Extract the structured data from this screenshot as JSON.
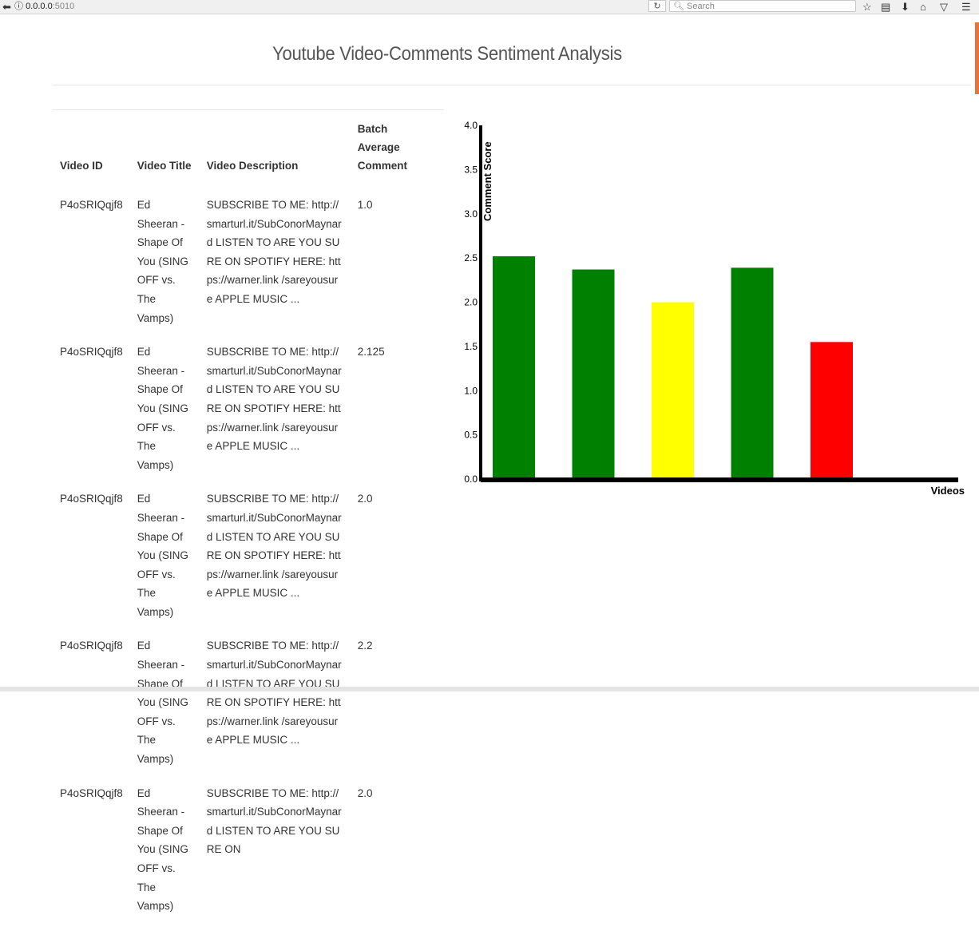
{
  "browser": {
    "url_host": "0.0.0.0",
    "url_port": ":5010",
    "search_placeholder": "Search"
  },
  "page": {
    "title": "Youtube Video-Comments Sentiment Analysis"
  },
  "table": {
    "headers": [
      "Video ID",
      "Video Title",
      "Video Description",
      "Batch Average Comment"
    ],
    "rows": [
      {
        "id": "P4oSRIQqjf8",
        "title": "Ed Sheeran - Shape Of You (SING OFF vs. The Vamps)",
        "description": "SUBSCRIBE TO ME: http://smarturl.it/SubConorMaynard LISTEN TO ARE YOU SURE ON SPOTIFY HERE: https://warner.link /sareyousure APPLE MUSIC ...",
        "score": "1.0"
      },
      {
        "id": "P4oSRIQqjf8",
        "title": "Ed Sheeran - Shape Of You (SING OFF vs. The Vamps)",
        "description": "SUBSCRIBE TO ME: http://smarturl.it/SubConorMaynard LISTEN TO ARE YOU SURE ON SPOTIFY HERE: https://warner.link /sareyousure APPLE MUSIC ...",
        "score": "2.125"
      },
      {
        "id": "P4oSRIQqjf8",
        "title": "Ed Sheeran - Shape Of You (SING OFF vs. The Vamps)",
        "description": "SUBSCRIBE TO ME: http://smarturl.it/SubConorMaynard LISTEN TO ARE YOU SURE ON SPOTIFY HERE: https://warner.link /sareyousure APPLE MUSIC ...",
        "score": "2.0"
      },
      {
        "id": "P4oSRIQqjf8",
        "title": "Ed Sheeran - Shape Of You (SING OFF vs. The Vamps)",
        "description": "SUBSCRIBE TO ME: http://smarturl.it/SubConorMaynard LISTEN TO ARE YOU SURE ON SPOTIFY HERE: https://warner.link /sareyousure APPLE MUSIC ...",
        "score": "2.2"
      },
      {
        "id": "P4oSRIQqjf8",
        "title": "Ed Sheeran - Shape Of You (SING OFF vs. The Vamps)",
        "description": "SUBSCRIBE TO ME: http://smarturl.it/SubConorMaynard LISTEN TO ARE YOU SURE ON",
        "score": "2.0"
      }
    ]
  },
  "chart_data": {
    "type": "bar",
    "categories": [
      "",
      "",
      "",
      "",
      ""
    ],
    "values": [
      2.52,
      2.37,
      2.0,
      2.39,
      1.55
    ],
    "colors": [
      "#008000",
      "#008000",
      "#ffff00",
      "#008000",
      "#ff0000"
    ],
    "ylabel": "Comment Score",
    "xlabel": "Videos",
    "ylim": [
      0,
      4.0
    ],
    "yticks": [
      "0.0",
      "0.5",
      "1.0",
      "1.5",
      "2.0",
      "2.5",
      "3.0",
      "3.5",
      "4.0"
    ],
    "grid": false,
    "legend": "none"
  }
}
